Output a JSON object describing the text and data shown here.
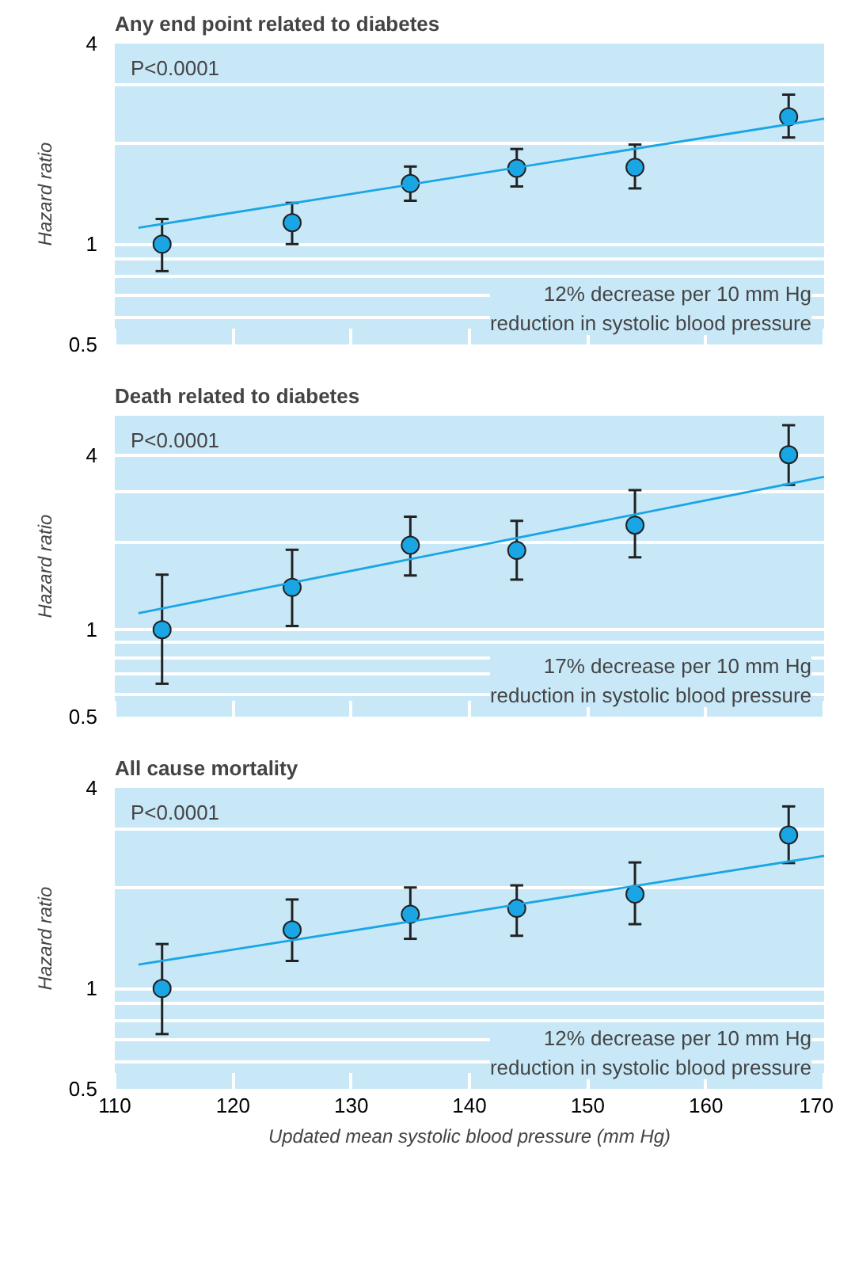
{
  "chart_data": [
    {
      "type": "scatter",
      "title": "Any end point related to diabetes",
      "ylabel": "Hazard ratio",
      "log": true,
      "xlim": [
        110,
        170
      ],
      "xticks": [
        110,
        120,
        130,
        140,
        150,
        160,
        170
      ],
      "ylim": [
        0.5,
        4
      ],
      "yticks": [
        0.5,
        {
          "value": 0.6,
          "label": null
        },
        {
          "value": 0.7,
          "label": null
        },
        {
          "value": 0.8,
          "label": null
        },
        {
          "value": 0.9,
          "label": null
        },
        1,
        {
          "value": 2,
          "label": null
        },
        {
          "value": 3,
          "label": null
        },
        4
      ],
      "grid": "y",
      "tick_labels": "y",
      "annotations": [
        "P<0.0001",
        "12% decrease per 10 mm Hg\nreduction in systolic blood pressure"
      ],
      "series": [
        {
          "color": "#1aa6e4",
          "marker": "circle",
          "x": [
            114,
            125,
            135,
            144,
            154,
            167
          ],
          "values": [
            1.0,
            1.16,
            1.52,
            1.69,
            1.7,
            2.41
          ],
          "errors": [
            [
              0.83,
              1.19
            ],
            [
              1.0,
              1.33
            ],
            [
              1.35,
              1.71
            ],
            [
              1.49,
              1.93
            ],
            [
              1.47,
              1.99
            ],
            [
              2.09,
              2.81
            ]
          ]
        },
        {
          "type": "line",
          "color": "#1aa6e4",
          "line_style": "solid",
          "x": [
            112,
            170
          ],
          "values": [
            1.12,
            2.38
          ]
        }
      ]
    },
    {
      "type": "scatter",
      "title": "Death related to diabetes",
      "ylabel": "Hazard ratio",
      "log": true,
      "xlim": [
        110,
        170
      ],
      "xticks": [
        110,
        120,
        130,
        140,
        150,
        160,
        170
      ],
      "ylim": [
        0.5,
        5.5
      ],
      "yticks": [
        0.5,
        {
          "value": 0.6,
          "label": null
        },
        {
          "value": 0.7,
          "label": null
        },
        {
          "value": 0.8,
          "label": null
        },
        {
          "value": 0.9,
          "label": null
        },
        1,
        {
          "value": 2,
          "label": null
        },
        {
          "value": 3,
          "label": null
        },
        4
      ],
      "grid": "y",
      "tick_labels": "y",
      "annotations": [
        "P<0.0001",
        "17% decrease per 10 mm Hg\nreduction in systolic blood pressure"
      ],
      "series": [
        {
          "color": "#1aa6e4",
          "marker": "circle",
          "x": [
            114,
            125,
            135,
            144,
            154,
            167
          ],
          "values": [
            1.0,
            1.4,
            1.96,
            1.88,
            2.3,
            4.03
          ],
          "errors": [
            [
              0.65,
              1.55
            ],
            [
              1.03,
              1.89
            ],
            [
              1.54,
              2.46
            ],
            [
              1.49,
              2.38
            ],
            [
              1.78,
              3.04
            ],
            [
              3.17,
              5.1
            ]
          ]
        },
        {
          "type": "line",
          "color": "#1aa6e4",
          "line_style": "solid",
          "x": [
            112,
            170
          ],
          "values": [
            1.14,
            3.38
          ]
        }
      ]
    },
    {
      "type": "scatter",
      "title": "All cause mortality",
      "xlabel": "Updated mean systolic blood pressure (mm Hg)",
      "ylabel": "Hazard ratio",
      "log": true,
      "xlim": [
        110,
        170
      ],
      "xticks": [
        110,
        120,
        130,
        140,
        150,
        160,
        170
      ],
      "ylim": [
        0.5,
        4
      ],
      "yticks": [
        0.5,
        {
          "value": 0.6,
          "label": null
        },
        {
          "value": 0.7,
          "label": null
        },
        {
          "value": 0.8,
          "label": null
        },
        {
          "value": 0.9,
          "label": null
        },
        1,
        {
          "value": 2,
          "label": null
        },
        {
          "value": 3,
          "label": null
        },
        4
      ],
      "grid": "y",
      "annotations": [
        "P<0.0001",
        "12% decrease per 10 mm Hg\nreduction in systolic blood pressure"
      ],
      "series": [
        {
          "color": "#1aa6e4",
          "marker": "circle",
          "x": [
            114,
            125,
            135,
            144,
            154,
            167
          ],
          "values": [
            1.0,
            1.5,
            1.67,
            1.74,
            1.92,
            2.89
          ],
          "errors": [
            [
              0.73,
              1.36
            ],
            [
              1.21,
              1.85
            ],
            [
              1.41,
              2.01
            ],
            [
              1.44,
              2.04
            ],
            [
              1.56,
              2.39
            ],
            [
              2.38,
              3.52
            ]
          ]
        },
        {
          "type": "line",
          "color": "#1aa6e4",
          "line_style": "solid",
          "x": [
            112,
            170
          ],
          "values": [
            1.18,
            2.5
          ]
        }
      ]
    }
  ]
}
